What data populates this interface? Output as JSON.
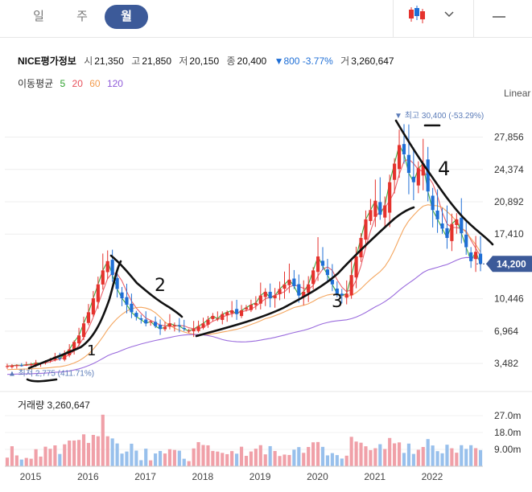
{
  "tabs": [
    {
      "label": "일",
      "active": false
    },
    {
      "label": "주",
      "active": false
    },
    {
      "label": "월",
      "active": true
    }
  ],
  "stock": {
    "name": "NICE평가정보",
    "open_label": "시",
    "open": "21,350",
    "high_label": "고",
    "high": "21,850",
    "low_label": "저",
    "low": "20,150",
    "close_label": "종",
    "close": "20,400",
    "change": "▼800 -3.77%",
    "volume_label": "거",
    "volume": "3,260,647"
  },
  "ma_legend": {
    "label": "이동평균",
    "periods": [
      {
        "value": "5",
        "color": "#2ca02c"
      },
      {
        "value": "20",
        "color": "#e8505b"
      },
      {
        "value": "60",
        "color": "#f39c4e"
      },
      {
        "value": "120",
        "color": "#8f5bd9"
      }
    ]
  },
  "scale_mode": "Linear",
  "colors": {
    "up": "#e5322d",
    "down": "#1f6fd6",
    "vol_up": "#f0a0a8",
    "vol_down": "#98c0ec",
    "accent": "#3c5a99"
  },
  "chart_data": {
    "type": "candlestick",
    "title": "NICE평가정보 월봉",
    "price_axis": {
      "ticks": [
        3482,
        6964,
        10446,
        17410,
        20892,
        24374,
        27856
      ],
      "tick_labels": [
        "3,482",
        "6,964",
        "10,446",
        "17,410",
        "20,892",
        "24,374",
        "27,856"
      ],
      "ylim": [
        1500,
        30500
      ]
    },
    "x_labels": [
      "2015",
      "2016",
      "2017",
      "2018",
      "2019",
      "2020",
      "2021",
      "2022"
    ],
    "current_price": {
      "value": 14200,
      "label": "14,200"
    },
    "max_marker": {
      "value": 30400,
      "label": "최고 30,400 (-53.29%)"
    },
    "min_marker": {
      "value": 2775,
      "label": "최저 2,775 (411.71%)"
    },
    "ma_periods": [
      5,
      20,
      60,
      120
    ],
    "close": [
      3200,
      3250,
      3300,
      3280,
      3350,
      3400,
      3550,
      3500,
      3700,
      3900,
      4200,
      4000,
      4500,
      5000,
      5800,
      6500,
      7800,
      9000,
      10500,
      12000,
      13500,
      14500,
      13000,
      11500,
      10500,
      9800,
      9000,
      8500,
      8200,
      7800,
      8000,
      7500,
      7200,
      7400,
      7800,
      7600,
      7500,
      7200,
      7000,
      7200,
      7500,
      7800,
      8200,
      8600,
      8300,
      8800,
      9000,
      9200,
      8800,
      9200,
      9500,
      9800,
      10000,
      10800,
      11200,
      10500,
      10800,
      11500,
      12000,
      12500,
      11800,
      10800,
      11200,
      12000,
      13500,
      15000,
      14000,
      13000,
      12000,
      11000,
      10800,
      11000,
      13000,
      15000,
      17000,
      19000,
      20000,
      21000,
      19500,
      20500,
      23000,
      25000,
      27000,
      26000,
      24000,
      23000,
      24500,
      25000,
      22000,
      20000,
      19000,
      18000,
      17000,
      18500,
      19000,
      17500,
      16000,
      14500,
      15500,
      14200
    ],
    "volume_axis": {
      "ticks": [
        9000000,
        18000000,
        27000000
      ],
      "tick_labels": [
        "9.00m",
        "18.0m",
        "27.0m"
      ]
    },
    "volume_label": "거래량 3,260,647"
  },
  "annotations": [
    "1",
    "2",
    "3",
    "4"
  ]
}
